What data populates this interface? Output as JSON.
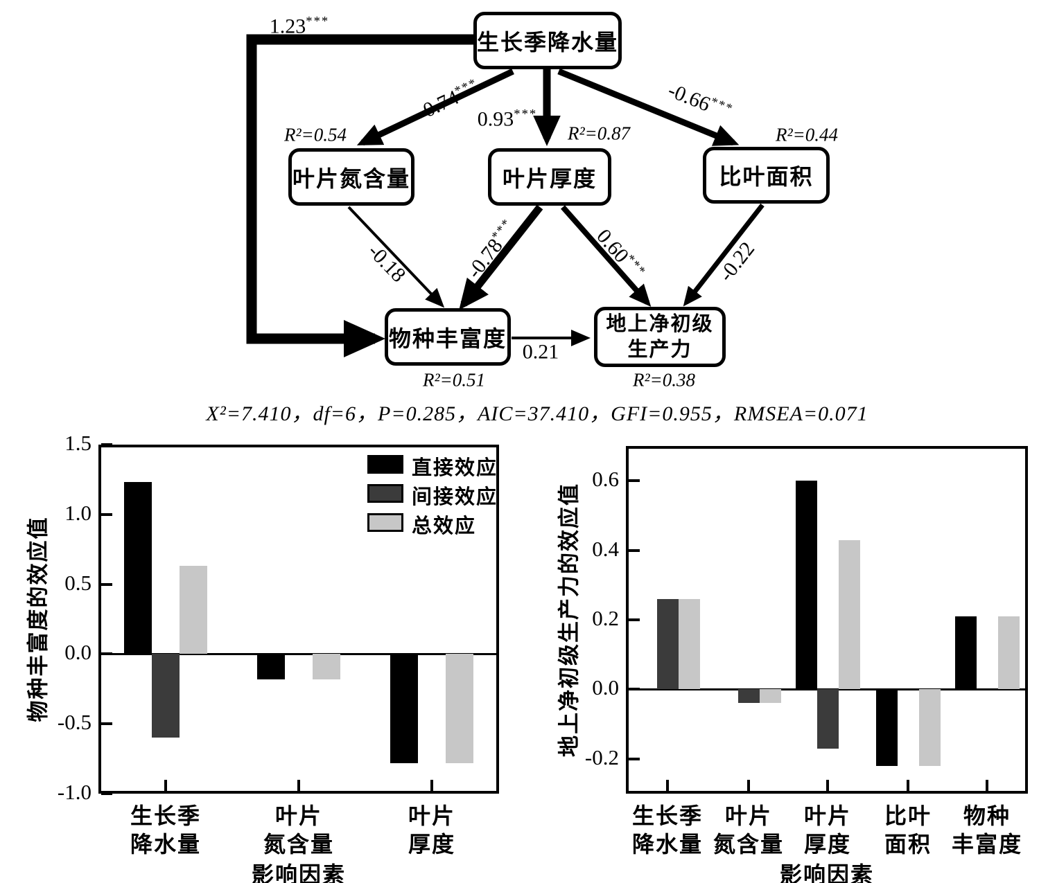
{
  "sem": {
    "nodes": {
      "gsp": {
        "label": "生长季降水量"
      },
      "lnc": {
        "label": "叶片氮含量",
        "r2": "R²=0.54"
      },
      "lt": {
        "label": "叶片厚度",
        "r2": "R²=0.87"
      },
      "sla": {
        "label": "比叶面积",
        "r2": "R²=0.44"
      },
      "sr": {
        "label": "物种丰富度",
        "r2": "R²=0.51"
      },
      "anpp": {
        "label_line1": "地上净初级",
        "label_line2": "生产力",
        "r2": "R²=0.38"
      }
    },
    "paths": {
      "gsp_sr": {
        "value": "1.23",
        "stars": "***"
      },
      "gsp_lnc": {
        "value": "-0.74",
        "stars": "***"
      },
      "gsp_lt": {
        "value": "0.93",
        "stars": "***"
      },
      "gsp_sla": {
        "value": "-0.66",
        "stars": "***"
      },
      "lnc_sr": {
        "value": "-0.18",
        "stars": ""
      },
      "lt_sr": {
        "value": "-0.78",
        "stars": "***"
      },
      "lt_anpp": {
        "value": "0.60",
        "stars": "***"
      },
      "sla_anpp": {
        "value": "-0.22",
        "stars": ""
      },
      "sr_anpp": {
        "value": "0.21",
        "stars": ""
      }
    },
    "fit_stats": "X²=7.410，df=6，P=0.285，AIC=37.410，GFI=0.955，RMSEA=0.071"
  },
  "colors": {
    "direct": "#000000",
    "indirect": "#3b3b3b",
    "total": "#c7c7c7"
  },
  "chart_data": [
    {
      "type": "bar",
      "title": "",
      "ylabel": "物种丰富度的效应值",
      "xlabel": "影响因素",
      "categories": [
        "生长季\n降水量",
        "叶片\n氮含量",
        "叶片\n厚度"
      ],
      "series": [
        {
          "name": "直接效应",
          "color": "#000000",
          "values": [
            1.23,
            -0.18,
            -0.78
          ]
        },
        {
          "name": "间接效应",
          "color": "#3b3b3b",
          "values": [
            -0.6,
            0,
            0
          ]
        },
        {
          "name": "总效应",
          "color": "#c7c7c7",
          "values": [
            0.63,
            -0.18,
            -0.78
          ]
        }
      ],
      "ylim": [
        -1.0,
        1.5
      ],
      "yticks": [
        "1.5",
        "1.0",
        "0.5",
        "0.0",
        "-0.5",
        "-1.0"
      ],
      "legend_position": "top-right",
      "grid": false
    },
    {
      "type": "bar",
      "title": "",
      "ylabel": "地上净初级生产力的效应值",
      "xlabel": "影响因素",
      "categories": [
        "生长季\n降水量",
        "叶片\n氮含量",
        "叶片\n厚度",
        "比叶\n面积",
        "物种\n丰富度"
      ],
      "series": [
        {
          "name": "直接效应",
          "color": "#000000",
          "values": [
            0,
            0,
            0.6,
            -0.22,
            0.21
          ]
        },
        {
          "name": "间接效应",
          "color": "#3b3b3b",
          "values": [
            0.26,
            -0.04,
            -0.17,
            0,
            0
          ]
        },
        {
          "name": "总效应",
          "color": "#c7c7c7",
          "values": [
            0.26,
            -0.04,
            0.43,
            -0.22,
            0.21
          ]
        }
      ],
      "ylim": [
        -0.3,
        0.7
      ],
      "yticks": [
        "0.6",
        "0.4",
        "0.2",
        "0.0",
        "-0.2"
      ],
      "legend_position": "none",
      "grid": false
    }
  ]
}
